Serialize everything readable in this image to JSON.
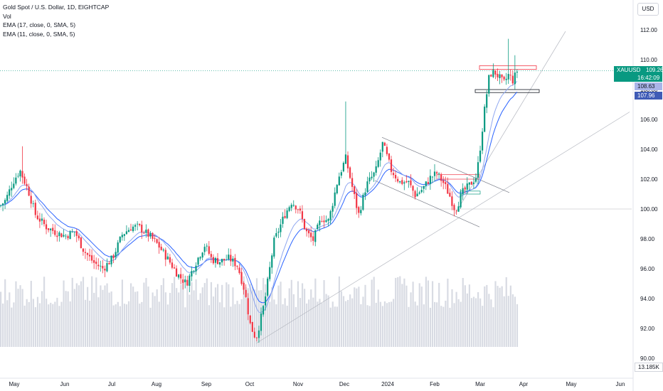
{
  "header": {
    "title": "Gold Spot / U.S. Dollar, 1D, EIGHTCAP",
    "indicator_vol": "Vol",
    "indicator_ema17": "EMA (17, close, 0, SMA, 5)",
    "indicator_ema11": "EMA (11, close, 0, SMA, 5)",
    "currency": "USD"
  },
  "price_labels": {
    "symbol": "XAUUSD",
    "last": "109.26",
    "countdown": "16:42:09",
    "ema17": "108.63",
    "ema11": "107.96",
    "volume": "13.185K"
  },
  "colors": {
    "up": "#089981",
    "down": "#f23645",
    "ema_fast": "#2962ff",
    "ema_slow": "#90a8f0",
    "volume": "#d8dbe3"
  },
  "chart_data": {
    "type": "candlestick",
    "ylim": [
      89.5,
      113.0
    ],
    "y_ticks": [
      "112.00",
      "110.00",
      "108.00",
      "106.00",
      "104.00",
      "102.00",
      "100.00",
      "98.00",
      "96.00",
      "94.00",
      "92.00",
      "90.00"
    ],
    "x_ticks": [
      "May",
      "Jun",
      "Jul",
      "Aug",
      "Sep",
      "Oct",
      "Nov",
      "Dec",
      "2024",
      "Feb",
      "Mar",
      "Apr",
      "May",
      "Jun"
    ],
    "last_price": 109.26,
    "ema17_last": 108.63,
    "ema11_last": 107.96,
    "reference_lines": [
      100.0,
      109.26
    ],
    "anchors": [
      {
        "x": 0,
        "y": 100.2
      },
      {
        "x": 8,
        "y": 100.6
      },
      {
        "x": 18,
        "y": 101.8
      },
      {
        "x": 28,
        "y": 102.6
      },
      {
        "x": 40,
        "y": 101.2
      },
      {
        "x": 50,
        "y": 99.6
      },
      {
        "x": 65,
        "y": 98.8
      },
      {
        "x": 80,
        "y": 98.4
      },
      {
        "x": 92,
        "y": 98.2
      },
      {
        "x": 105,
        "y": 98.5
      },
      {
        "x": 118,
        "y": 97.2
      },
      {
        "x": 132,
        "y": 96.4
      },
      {
        "x": 145,
        "y": 96.0
      },
      {
        "x": 158,
        "y": 96.7
      },
      {
        "x": 172,
        "y": 98.3
      },
      {
        "x": 185,
        "y": 98.8
      },
      {
        "x": 195,
        "y": 98.8
      },
      {
        "x": 210,
        "y": 98.2
      },
      {
        "x": 222,
        "y": 97.6
      },
      {
        "x": 238,
        "y": 96.5
      },
      {
        "x": 250,
        "y": 95.6
      },
      {
        "x": 262,
        "y": 95.0
      },
      {
        "x": 275,
        "y": 96.4
      },
      {
        "x": 288,
        "y": 97.6
      },
      {
        "x": 298,
        "y": 96.6
      },
      {
        "x": 310,
        "y": 96.5
      },
      {
        "x": 322,
        "y": 96.7
      },
      {
        "x": 334,
        "y": 96.2
      },
      {
        "x": 344,
        "y": 94.5
      },
      {
        "x": 352,
        "y": 92.2
      },
      {
        "x": 360,
        "y": 91.3
      },
      {
        "x": 372,
        "y": 93.8
      },
      {
        "x": 385,
        "y": 97.8
      },
      {
        "x": 400,
        "y": 99.6
      },
      {
        "x": 410,
        "y": 100.5
      },
      {
        "x": 420,
        "y": 100.0
      },
      {
        "x": 430,
        "y": 98.5
      },
      {
        "x": 440,
        "y": 97.9
      },
      {
        "x": 452,
        "y": 99.4
      },
      {
        "x": 462,
        "y": 99.2
      },
      {
        "x": 475,
        "y": 102.0
      },
      {
        "x": 486,
        "y": 103.4
      },
      {
        "x": 495,
        "y": 101.5
      },
      {
        "x": 504,
        "y": 99.6
      },
      {
        "x": 515,
        "y": 101.6
      },
      {
        "x": 528,
        "y": 102.5
      },
      {
        "x": 538,
        "y": 104.4
      },
      {
        "x": 550,
        "y": 102.6
      },
      {
        "x": 562,
        "y": 101.8
      },
      {
        "x": 574,
        "y": 101.8
      },
      {
        "x": 584,
        "y": 100.9
      },
      {
        "x": 595,
        "y": 101.4
      },
      {
        "x": 605,
        "y": 102.1
      },
      {
        "x": 614,
        "y": 102.4
      },
      {
        "x": 624,
        "y": 101.7
      },
      {
        "x": 632,
        "y": 100.9
      },
      {
        "x": 640,
        "y": 99.9
      },
      {
        "x": 650,
        "y": 101.1
      },
      {
        "x": 660,
        "y": 101.6
      },
      {
        "x": 670,
        "y": 102.2
      },
      {
        "x": 676,
        "y": 104.5
      },
      {
        "x": 682,
        "y": 107.0
      },
      {
        "x": 688,
        "y": 109.0
      },
      {
        "x": 695,
        "y": 109.2
      },
      {
        "x": 702,
        "y": 108.8
      },
      {
        "x": 708,
        "y": 108.4
      },
      {
        "x": 715,
        "y": 109.0
      },
      {
        "x": 721,
        "y": 108.6
      },
      {
        "x": 727,
        "y": 109.26
      }
    ],
    "volume_range": [
      0.0,
      14.0
    ]
  }
}
